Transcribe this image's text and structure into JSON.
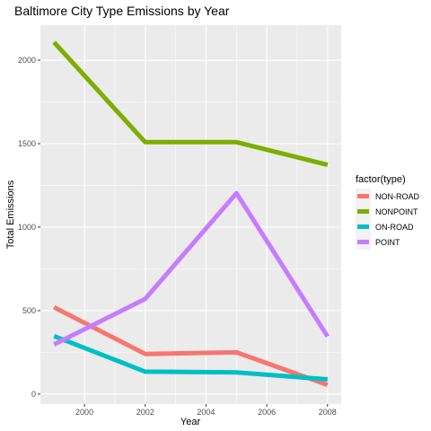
{
  "chart_data": {
    "type": "line",
    "title": "Baltimore City Type Emissions by Year",
    "xlabel": "Year",
    "ylabel": "Total Emissions",
    "x": [
      1999,
      2002,
      2005,
      2008
    ],
    "xlim": [
      1998.55,
      2008.45
    ],
    "ylim": [
      -60,
      2210
    ],
    "x_ticks": [
      2000,
      2002,
      2004,
      2006,
      2008
    ],
    "y_ticks": [
      0,
      500,
      1000,
      1500,
      2000
    ],
    "x_tick_labels": [
      "2000",
      "2002",
      "2004",
      "2006",
      "2008"
    ],
    "y_tick_labels": [
      "0",
      "500",
      "1000",
      "1500",
      "2000"
    ],
    "grid": true,
    "legend_title": "factor(type)",
    "legend_position": "right",
    "series": [
      {
        "name": "NON-ROAD",
        "color": "#f8766d",
        "values": [
          520,
          240,
          250,
          55
        ]
      },
      {
        "name": "NONPOINT",
        "color": "#7cae00",
        "values": [
          2107,
          1509,
          1509,
          1373
        ]
      },
      {
        "name": "ON-ROAD",
        "color": "#00bfc4",
        "values": [
          347,
          134,
          130,
          88
        ]
      },
      {
        "name": "POINT",
        "color": "#c77cff",
        "values": [
          297,
          570,
          1203,
          345
        ]
      }
    ]
  }
}
